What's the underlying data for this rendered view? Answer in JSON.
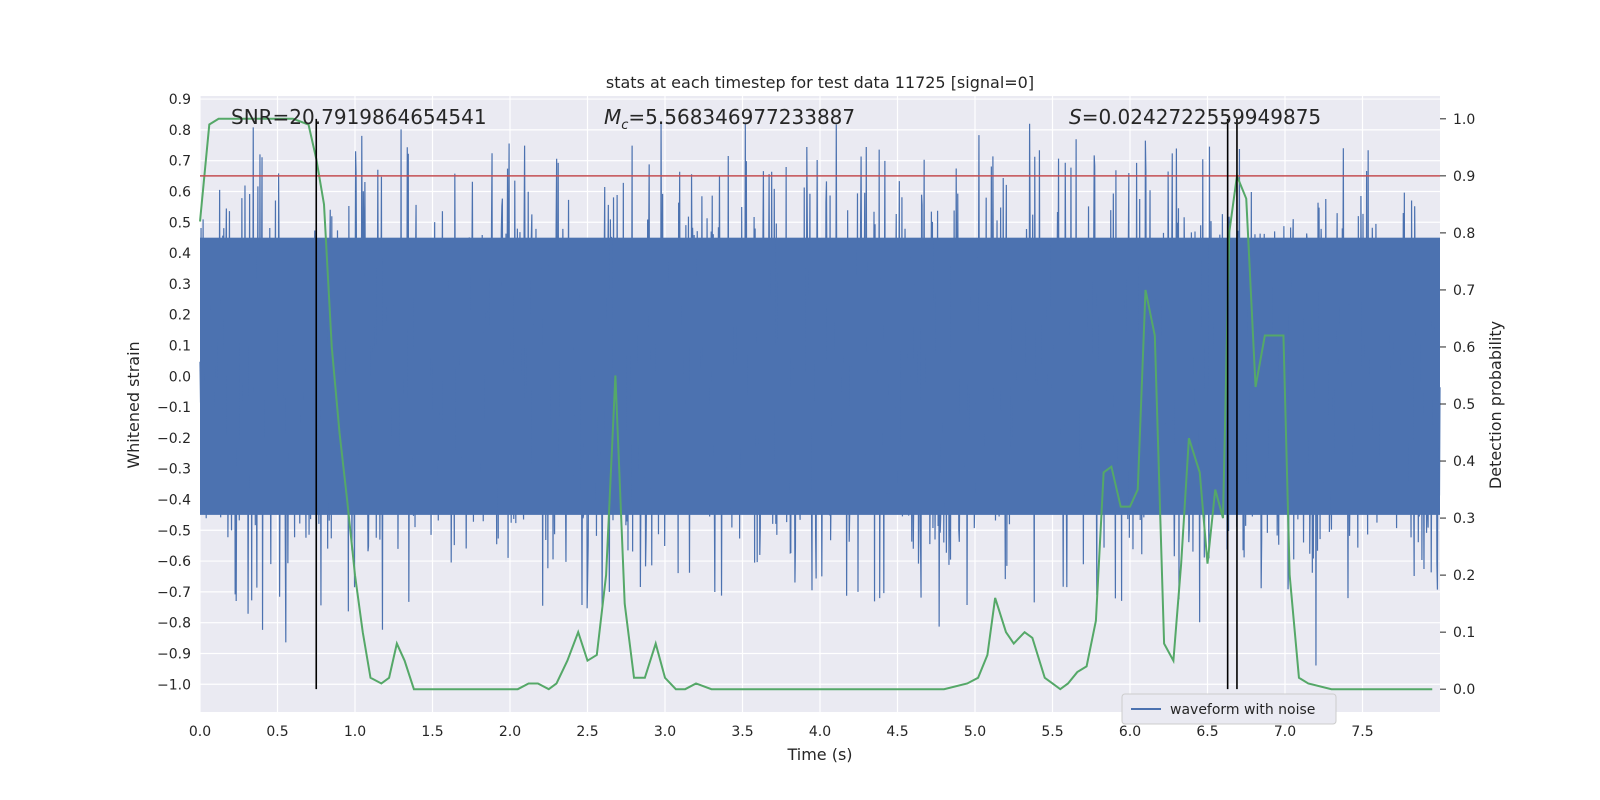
{
  "chart_data": {
    "type": "line",
    "title": "stats at each timestep for test data 11725 [signal=0]",
    "xlabel": "Time (s)",
    "ylabel": "Whitened strain",
    "y2label": "Detection probability",
    "xlim": [
      0.0,
      8.0
    ],
    "ylim": [
      -1.09,
      0.91
    ],
    "y2lim": [
      -0.04,
      1.04
    ],
    "xticks": [
      "0.0",
      "0.5",
      "1.0",
      "1.5",
      "2.0",
      "2.5",
      "3.0",
      "3.5",
      "4.0",
      "4.5",
      "5.0",
      "5.5",
      "6.0",
      "6.5",
      "7.0",
      "7.5"
    ],
    "yticks": [
      "0.9",
      "0.8",
      "0.7",
      "0.6",
      "0.5",
      "0.4",
      "0.3",
      "0.2",
      "0.1",
      "0.0",
      "-0.1",
      "-0.2",
      "-0.3",
      "-0.4",
      "-0.5",
      "-0.6",
      "-0.7",
      "-0.8",
      "-0.9",
      "-1.0"
    ],
    "y2ticks": [
      "0.0",
      "0.1",
      "0.2",
      "0.3",
      "0.4",
      "0.5",
      "0.6",
      "0.7",
      "0.8",
      "0.9",
      "1.0"
    ],
    "annotations": {
      "snr": "SNR=20.7919864654541",
      "mc_prefix": "M",
      "mc_sub": "c",
      "mc_value": "=5.568346977233887",
      "s_prefix": "S",
      "s_value": "=0.0242722559949875"
    },
    "threshold": {
      "value": 0.9,
      "axis": "right",
      "color": "#c44e52"
    },
    "vertical_markers": [
      0.75,
      6.63,
      6.69
    ],
    "legend": {
      "label": "waveform with noise",
      "placement": "lower-right"
    },
    "series": [
      {
        "name": "waveform with noise",
        "color": "#4c72b0",
        "axis": "left",
        "kind": "noise",
        "core_amplitude": 0.45,
        "typical_range": [
          -0.55,
          0.7
        ],
        "extremes": [
          -1.0,
          0.82
        ]
      },
      {
        "name": "Detection probability",
        "color": "#55a868",
        "axis": "right",
        "x": [
          0.0,
          0.06,
          0.12,
          0.2,
          0.3,
          0.4,
          0.5,
          0.6,
          0.7,
          0.75,
          0.8,
          0.85,
          0.9,
          0.95,
          1.0,
          1.05,
          1.1,
          1.17,
          1.22,
          1.27,
          1.32,
          1.38,
          1.45,
          1.55,
          1.65,
          1.75,
          1.85,
          1.95,
          2.05,
          2.12,
          2.18,
          2.25,
          2.3,
          2.37,
          2.44,
          2.5,
          2.56,
          2.62,
          2.68,
          2.74,
          2.8,
          2.87,
          2.94,
          3.0,
          3.07,
          3.13,
          3.2,
          3.3,
          3.4,
          3.6,
          3.8,
          4.0,
          4.2,
          4.5,
          4.8,
          4.95,
          5.02,
          5.08,
          5.13,
          5.2,
          5.25,
          5.32,
          5.37,
          5.45,
          5.5,
          5.55,
          5.6,
          5.66,
          5.72,
          5.78,
          5.83,
          5.88,
          5.94,
          6.0,
          6.05,
          6.1,
          6.16,
          6.22,
          6.28,
          6.33,
          6.38,
          6.45,
          6.5,
          6.55,
          6.6,
          6.64,
          6.69,
          6.75,
          6.81,
          6.87,
          6.93,
          6.99,
          7.03,
          7.09,
          7.15,
          7.3,
          7.5,
          7.7,
          7.9,
          7.95
        ],
        "y": [
          0.82,
          0.99,
          1.0,
          1.0,
          1.0,
          1.0,
          1.0,
          1.0,
          0.99,
          0.93,
          0.85,
          0.6,
          0.45,
          0.33,
          0.2,
          0.1,
          0.02,
          0.01,
          0.02,
          0.08,
          0.05,
          0.0,
          0.0,
          0.0,
          0.0,
          0.0,
          0.0,
          0.0,
          0.0,
          0.01,
          0.01,
          0.0,
          0.01,
          0.05,
          0.1,
          0.05,
          0.06,
          0.2,
          0.55,
          0.15,
          0.02,
          0.02,
          0.08,
          0.02,
          0.0,
          0.0,
          0.01,
          0.0,
          0.0,
          0.0,
          0.0,
          0.0,
          0.0,
          0.0,
          0.0,
          0.01,
          0.02,
          0.06,
          0.16,
          0.1,
          0.08,
          0.1,
          0.09,
          0.02,
          0.01,
          0.0,
          0.01,
          0.03,
          0.04,
          0.12,
          0.38,
          0.39,
          0.32,
          0.32,
          0.35,
          0.7,
          0.62,
          0.08,
          0.05,
          0.22,
          0.44,
          0.38,
          0.22,
          0.35,
          0.3,
          0.8,
          0.9,
          0.86,
          0.53,
          0.62,
          0.62,
          0.62,
          0.2,
          0.02,
          0.01,
          0.0,
          0.0,
          0.0,
          0.0,
          0.0
        ]
      }
    ]
  }
}
